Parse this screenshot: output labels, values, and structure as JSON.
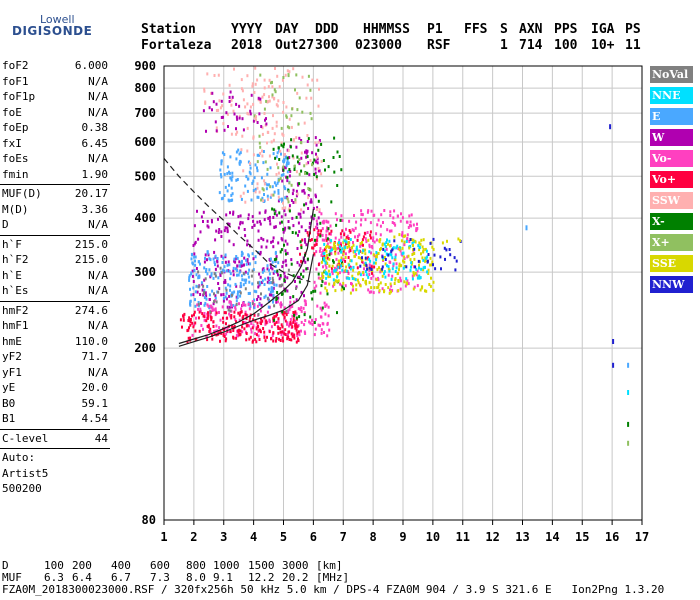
{
  "logo": {
    "top": "Lowell",
    "bottom": "DIGISONDE"
  },
  "header": {
    "labels": [
      "Station",
      "YYYY",
      "DAY",
      "DDD",
      "HHMMSS",
      "P1",
      "FFS",
      "S",
      "AXN",
      "PPS",
      "IGA",
      "PS"
    ],
    "values": [
      "Fortaleza",
      "2018",
      "Out27",
      "300",
      "023000",
      "RSF",
      "",
      "1",
      "714",
      "100",
      "10+",
      "11"
    ]
  },
  "params": {
    "group1": [
      {
        "name": "foF2",
        "value": "6.000"
      },
      {
        "name": "foF1",
        "value": "N/A"
      },
      {
        "name": "foF1p",
        "value": "N/A"
      },
      {
        "name": "foE",
        "value": "N/A"
      },
      {
        "name": "foEp",
        "value": "0.38"
      },
      {
        "name": "fxI",
        "value": "6.45"
      },
      {
        "name": "foEs",
        "value": "N/A"
      },
      {
        "name": "fmin",
        "value": "1.90"
      }
    ],
    "group2": [
      {
        "name": "MUF(D)",
        "value": "20.17"
      },
      {
        "name": "M(D)",
        "value": "3.36"
      },
      {
        "name": "D",
        "value": "N/A"
      }
    ],
    "group3": [
      {
        "name": "h`F",
        "value": "215.0"
      },
      {
        "name": "h`F2",
        "value": "215.0"
      },
      {
        "name": "h`E",
        "value": "N/A"
      },
      {
        "name": "h`Es",
        "value": "N/A"
      }
    ],
    "group4": [
      {
        "name": "hmF2",
        "value": "274.6"
      },
      {
        "name": "hmF1",
        "value": "N/A"
      },
      {
        "name": "hmE",
        "value": "110.0"
      },
      {
        "name": "yF2",
        "value": "71.7"
      },
      {
        "name": "yF1",
        "value": "N/A"
      },
      {
        "name": "yE",
        "value": "20.0"
      },
      {
        "name": "B0",
        "value": "59.1"
      },
      {
        "name": "B1",
        "value": "4.54"
      }
    ],
    "clevel": {
      "name": "C-level",
      "value": "44"
    },
    "auto": [
      "Auto:",
      "Artist5",
      "500200"
    ]
  },
  "legend": [
    {
      "label": "NoVal",
      "color": "#808080"
    },
    {
      "label": "NNE",
      "color": "#00e0ff"
    },
    {
      "label": "E",
      "color": "#4aa8ff"
    },
    {
      "label": "W",
      "color": "#b000b0"
    },
    {
      "label": "Vo-",
      "color": "#ff40c0"
    },
    {
      "label": "Vo+",
      "color": "#ff0040"
    },
    {
      "label": "SSW",
      "color": "#ffb0b0"
    },
    {
      "label": "X-",
      "color": "#008000"
    },
    {
      "label": "X+",
      "color": "#90c060"
    },
    {
      "label": "SSE",
      "color": "#d8d800"
    },
    {
      "label": "NNW",
      "color": "#2020d0"
    }
  ],
  "mufTable": {
    "dLabel": "D",
    "dValues": [
      "100",
      "200",
      "400",
      "600",
      "800",
      "1000",
      "1500",
      "3000"
    ],
    "dUnit": "[km]",
    "mufLabel": "MUF",
    "mufValues": [
      "6.3",
      "6.4",
      "6.7",
      "7.3",
      "8.0",
      "9.1",
      "12.2",
      "20.2"
    ],
    "mufUnit": "[MHz]"
  },
  "footer": "FZA0M_2018300023000.RSF / 320fx256h 50 kHz 5.0 km / DPS-4 FZA0M 904 / 3.9 S 321.6 E   Ion2Png 1.3.20",
  "chart_data": {
    "type": "scatter",
    "title": "",
    "xlabel": "",
    "ylabel": "",
    "xlim": [
      1,
      17
    ],
    "ylim": [
      80,
      900
    ],
    "xticks": [
      1,
      2,
      3,
      4,
      5,
      6,
      7,
      8,
      9,
      10,
      11,
      12,
      13,
      14,
      15,
      16,
      17
    ],
    "yticks": [
      80,
      200,
      300,
      400,
      500,
      600,
      700,
      800,
      900
    ],
    "grid": true,
    "y_scale": "log",
    "clusters": [
      {
        "category": "W",
        "color": "#b000b0",
        "x_range": [
          1.9,
          5.8
        ],
        "y_range": [
          250,
          420
        ],
        "n": 260
      },
      {
        "category": "W",
        "color": "#b000b0",
        "x_range": [
          4.8,
          6.2
        ],
        "y_range": [
          380,
          620
        ],
        "n": 80
      },
      {
        "category": "E",
        "color": "#4aa8ff",
        "x_range": [
          1.8,
          4.8
        ],
        "y_range": [
          250,
          340
        ],
        "n": 200
      },
      {
        "category": "E",
        "color": "#4aa8ff",
        "x_range": [
          2.8,
          5.2
        ],
        "y_range": [
          440,
          580
        ],
        "n": 120
      },
      {
        "category": "Vo-",
        "color": "#ff40c0",
        "x_range": [
          1.9,
          6.5
        ],
        "y_range": [
          215,
          260
        ],
        "n": 200
      },
      {
        "category": "Vo-",
        "color": "#ff40c0",
        "x_range": [
          6.0,
          9.5
        ],
        "y_range": [
          270,
          420
        ],
        "n": 250
      },
      {
        "category": "Vo+",
        "color": "#ff0040",
        "x_range": [
          1.5,
          5.5
        ],
        "y_range": [
          208,
          245
        ],
        "n": 220
      },
      {
        "category": "Vo+",
        "color": "#ff0040",
        "x_range": [
          5.5,
          8.0
        ],
        "y_range": [
          300,
          380
        ],
        "n": 80
      },
      {
        "category": "SSW",
        "color": "#ffb0b0",
        "x_range": [
          3.5,
          6.3
        ],
        "y_range": [
          420,
          900
        ],
        "n": 120
      },
      {
        "category": "X-",
        "color": "#008000",
        "x_range": [
          4.5,
          7.0
        ],
        "y_range": [
          230,
          620
        ],
        "n": 120
      },
      {
        "category": "X+",
        "color": "#90c060",
        "x_range": [
          4.0,
          6.0
        ],
        "y_range": [
          430,
          880
        ],
        "n": 60
      },
      {
        "category": "SSE",
        "color": "#d8d800",
        "x_range": [
          6.2,
          10.0
        ],
        "y_range": [
          270,
          360
        ],
        "n": 220
      },
      {
        "category": "NNE",
        "color": "#00e0ff",
        "x_range": [
          6.3,
          9.8
        ],
        "y_range": [
          290,
          360
        ],
        "n": 120
      },
      {
        "category": "NNW",
        "color": "#2020d0",
        "x_range": [
          7.5,
          10.9
        ],
        "y_range": [
          300,
          360
        ],
        "n": 40
      },
      {
        "category": "SSW",
        "color": "#ffb0b0",
        "x_range": [
          2.3,
          4.8
        ],
        "y_range": [
          620,
          900
        ],
        "n": 50
      },
      {
        "category": "W",
        "color": "#b000b0",
        "x_range": [
          2.3,
          4.5
        ],
        "y_range": [
          640,
          800
        ],
        "n": 40
      },
      {
        "category": "NoVal",
        "color": "#808080",
        "x_range": [
          2.0,
          5.5
        ],
        "y_range": [
          240,
          310
        ],
        "n": 40
      },
      {
        "category": "SSE",
        "color": "#d8d800",
        "x_range": [
          8.0,
          11.0
        ],
        "y_range": [
          340,
          370
        ],
        "n": 20
      }
    ],
    "isolated_points": [
      {
        "x": 16.0,
        "y": 210,
        "color": "#2020d0"
      },
      {
        "x": 16.0,
        "y": 185,
        "color": "#2020d0"
      },
      {
        "x": 16.5,
        "y": 185,
        "color": "#4aa8ff"
      },
      {
        "x": 16.5,
        "y": 160,
        "color": "#00e0ff"
      },
      {
        "x": 16.5,
        "y": 135,
        "color": "#008000"
      },
      {
        "x": 16.5,
        "y": 122,
        "color": "#90c060"
      },
      {
        "x": 15.9,
        "y": 660,
        "color": "#2020d0"
      },
      {
        "x": 13.1,
        "y": 385,
        "color": "#4aa8ff"
      }
    ],
    "profile_curves": [
      {
        "name": "dashed",
        "style": "dashed",
        "points": [
          [
            1.0,
            550
          ],
          [
            1.5,
            500
          ],
          [
            2.0,
            460
          ],
          [
            2.5,
            425
          ],
          [
            3.0,
            395
          ],
          [
            3.5,
            365
          ],
          [
            4.0,
            340
          ],
          [
            4.5,
            315
          ],
          [
            5.0,
            300
          ],
          [
            5.5,
            290
          ],
          [
            5.9,
            285
          ]
        ]
      },
      {
        "name": "trace",
        "style": "solid",
        "points": [
          [
            1.5,
            205
          ],
          [
            2.0,
            210
          ],
          [
            2.5,
            215
          ],
          [
            3.0,
            222
          ],
          [
            3.5,
            230
          ],
          [
            4.0,
            240
          ],
          [
            4.5,
            255
          ],
          [
            5.0,
            272
          ],
          [
            5.3,
            285
          ],
          [
            5.6,
            310
          ],
          [
            5.8,
            340
          ],
          [
            6.0,
            420
          ]
        ]
      },
      {
        "name": "virtual",
        "style": "solid",
        "points": [
          [
            1.5,
            202
          ],
          [
            2.0,
            207
          ],
          [
            2.5,
            212
          ],
          [
            3.0,
            218
          ],
          [
            3.5,
            225
          ],
          [
            4.0,
            232
          ],
          [
            4.5,
            238
          ],
          [
            5.0,
            245
          ],
          [
            5.5,
            258
          ],
          [
            5.8,
            280
          ],
          [
            6.0,
            330
          ]
        ]
      }
    ]
  }
}
